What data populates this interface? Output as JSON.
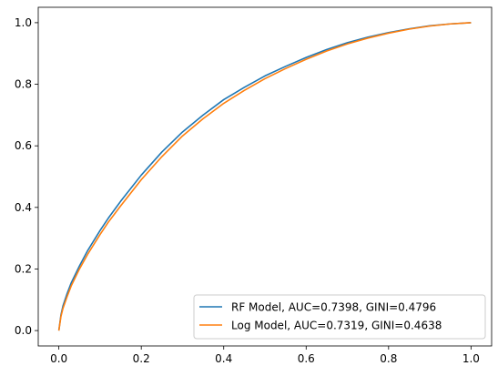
{
  "chart_data": {
    "type": "line",
    "title": "",
    "xlabel": "",
    "ylabel": "",
    "xlim": [
      -0.05,
      1.05
    ],
    "ylim": [
      -0.05,
      1.05
    ],
    "grid": false,
    "legend_position": "bottom-right",
    "x_ticks": [
      {
        "value": 0.0,
        "label": "0.0"
      },
      {
        "value": 0.2,
        "label": "0.2"
      },
      {
        "value": 0.4,
        "label": "0.4"
      },
      {
        "value": 0.6,
        "label": "0.6"
      },
      {
        "value": 0.8,
        "label": "0.8"
      },
      {
        "value": 1.0,
        "label": "1.0"
      }
    ],
    "y_ticks": [
      {
        "value": 0.0,
        "label": "0.0"
      },
      {
        "value": 0.2,
        "label": "0.2"
      },
      {
        "value": 0.4,
        "label": "0.4"
      },
      {
        "value": 0.6,
        "label": "0.6"
      },
      {
        "value": 0.8,
        "label": "0.8"
      },
      {
        "value": 1.0,
        "label": "1.0"
      }
    ],
    "series": [
      {
        "name": "RF Model, AUC=0.7398, GINI=0.4796",
        "color": "#1f77b4",
        "x": [
          0,
          0.005,
          0.01,
          0.02,
          0.03,
          0.05,
          0.07,
          0.1,
          0.12,
          0.15,
          0.2,
          0.25,
          0.3,
          0.35,
          0.4,
          0.45,
          0.5,
          0.55,
          0.6,
          0.65,
          0.7,
          0.75,
          0.8,
          0.85,
          0.9,
          0.95,
          1.0
        ],
        "y": [
          0,
          0.05,
          0.08,
          0.12,
          0.155,
          0.21,
          0.26,
          0.325,
          0.365,
          0.42,
          0.505,
          0.58,
          0.645,
          0.7,
          0.75,
          0.79,
          0.827,
          0.858,
          0.887,
          0.913,
          0.935,
          0.953,
          0.968,
          0.98,
          0.99,
          0.996,
          1.0
        ]
      },
      {
        "name": "Log Model, AUC=0.7319, GINI=0.4638",
        "color": "#ff7f0e",
        "x": [
          0,
          0.005,
          0.01,
          0.02,
          0.03,
          0.05,
          0.07,
          0.1,
          0.12,
          0.15,
          0.2,
          0.25,
          0.3,
          0.35,
          0.4,
          0.45,
          0.5,
          0.55,
          0.6,
          0.65,
          0.7,
          0.75,
          0.8,
          0.85,
          0.9,
          0.95,
          1.0
        ],
        "y": [
          0,
          0.045,
          0.072,
          0.11,
          0.145,
          0.2,
          0.248,
          0.312,
          0.352,
          0.405,
          0.49,
          0.565,
          0.632,
          0.688,
          0.738,
          0.78,
          0.818,
          0.851,
          0.881,
          0.908,
          0.931,
          0.95,
          0.966,
          0.979,
          0.989,
          0.996,
          1.0
        ]
      }
    ]
  }
}
